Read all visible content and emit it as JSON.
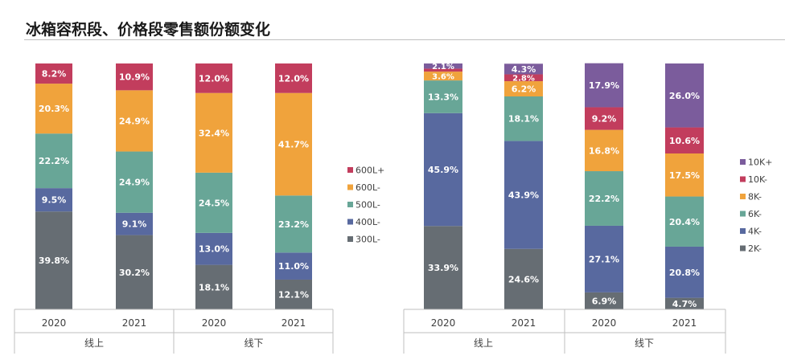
{
  "page": {
    "title": "冰箱容积段、价格段零售额份额变化"
  },
  "colors": {
    "c6": "#7b5c9c",
    "c5": "#c23d5d",
    "c4": "#f0a33c",
    "c3": "#68a697",
    "c2": "#58699f",
    "c1": "#666d73",
    "axis": "#bfbfbf",
    "tick_text": "#404040"
  },
  "chart_data": [
    {
      "type": "bar",
      "stacked": true,
      "categories": [
        "2020",
        "2021",
        "2020",
        "2021"
      ],
      "groups": [
        {
          "label": "线上",
          "categories": [
            "2020",
            "2021"
          ]
        },
        {
          "label": "线下",
          "categories": [
            "2020",
            "2021"
          ]
        }
      ],
      "series": [
        {
          "name": "300L-",
          "color": "#666d73",
          "values": [
            39.8,
            30.2,
            18.1,
            12.1
          ]
        },
        {
          "name": "400L-",
          "color": "#58699f",
          "values": [
            9.5,
            9.1,
            13.0,
            11.0
          ]
        },
        {
          "name": "500L-",
          "color": "#68a697",
          "values": [
            22.2,
            24.9,
            24.5,
            23.2
          ]
        },
        {
          "name": "600L-",
          "color": "#f0a33c",
          "values": [
            20.3,
            24.9,
            32.4,
            41.7
          ]
        },
        {
          "name": "600L+",
          "color": "#c23d5d",
          "values": [
            8.2,
            10.9,
            12.0,
            12.0
          ]
        }
      ],
      "ylim": [
        0,
        100
      ],
      "legend_position": "right",
      "grid": false
    },
    {
      "type": "bar",
      "stacked": true,
      "categories": [
        "2020",
        "2021",
        "2020",
        "2021"
      ],
      "groups": [
        {
          "label": "线上",
          "categories": [
            "2020",
            "2021"
          ]
        },
        {
          "label": "线下",
          "categories": [
            "2020",
            "2021"
          ]
        }
      ],
      "series": [
        {
          "name": "2K-",
          "color": "#666d73",
          "values": [
            33.9,
            24.6,
            6.9,
            4.7
          ]
        },
        {
          "name": "4K-",
          "color": "#58699f",
          "values": [
            45.9,
            43.9,
            27.1,
            20.8
          ]
        },
        {
          "name": "6K-",
          "color": "#68a697",
          "values": [
            13.3,
            18.1,
            22.2,
            20.4
          ]
        },
        {
          "name": "8K-",
          "color": "#f0a33c",
          "values": [
            3.6,
            6.2,
            16.8,
            17.5
          ]
        },
        {
          "name": "10K-",
          "color": "#c23d5d",
          "values": [
            1.2,
            2.8,
            9.2,
            10.6
          ]
        },
        {
          "name": "10K+",
          "color": "#7b5c9c",
          "values": [
            2.1,
            4.3,
            17.9,
            26.0
          ]
        }
      ],
      "value_labels": [
        [
          "33.9%",
          "45.9%",
          "13.3%",
          "3.6%",
          "",
          "2.1%"
        ],
        [
          "24.6%",
          "43.9%",
          "18.1%",
          "6.2%",
          "2.8%",
          "4.3%"
        ],
        [
          "6.9%",
          "27.1%",
          "22.2%",
          "16.8%",
          "9.2%",
          "17.9%"
        ],
        [
          "4.7%",
          "20.8%",
          "20.4%",
          "17.5%",
          "10.6%",
          "26.0%"
        ]
      ],
      "ylim": [
        0,
        100
      ],
      "legend_position": "right",
      "grid": false
    }
  ]
}
